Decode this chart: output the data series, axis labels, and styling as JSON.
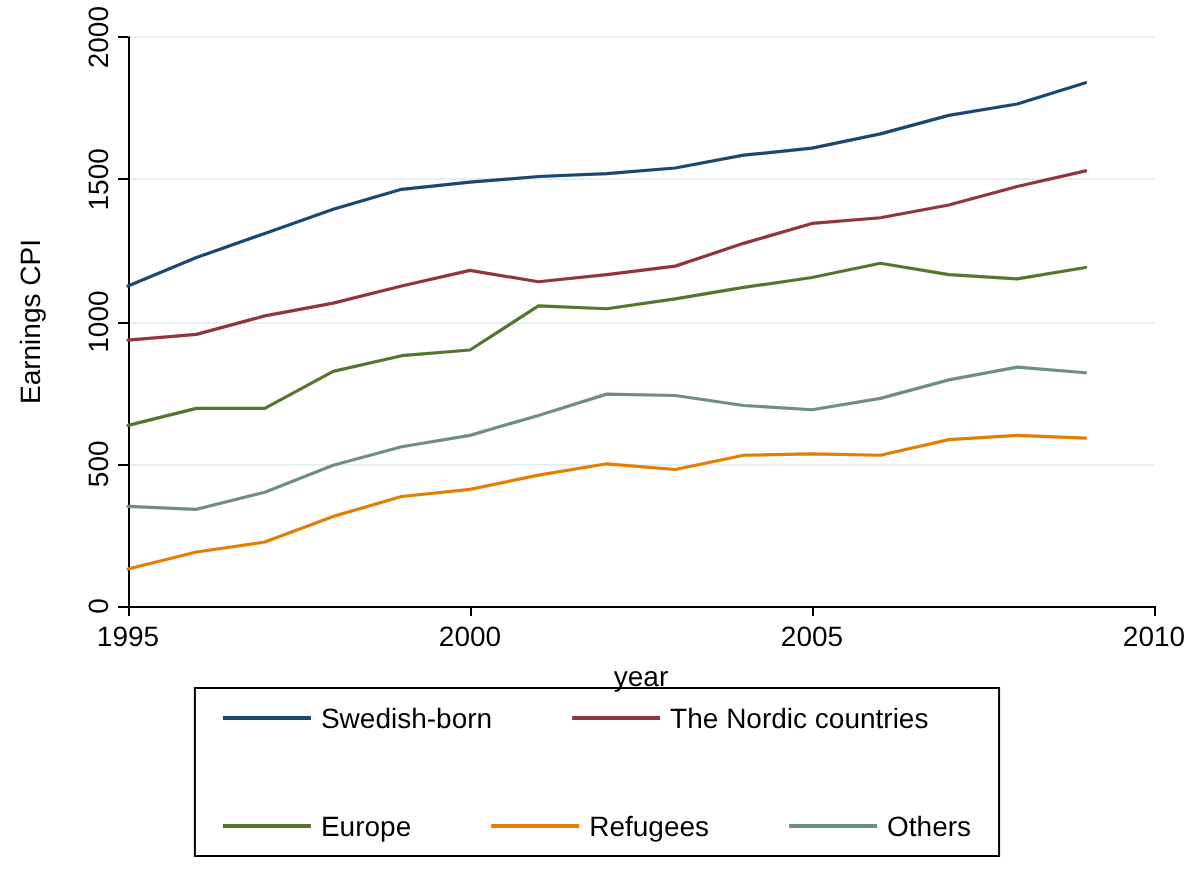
{
  "chart_data": {
    "type": "line",
    "xlabel": "year",
    "ylabel": "Earnings CPI",
    "x": [
      1995,
      1996,
      1997,
      1998,
      1999,
      2000,
      2001,
      2002,
      2003,
      2004,
      2005,
      2006,
      2007,
      2008,
      2009
    ],
    "xlim": [
      1995,
      2010
    ],
    "xticks": [
      1995,
      2000,
      2005,
      2010
    ],
    "ylim": [
      0,
      2000
    ],
    "yticks": [
      0,
      500,
      1000,
      1500,
      2000
    ],
    "grid": "y",
    "legend": "bottom",
    "marker": "none",
    "line_style": "solid",
    "series": [
      {
        "name": "Swedish-born",
        "color": "#1a476f",
        "values": [
          1125,
          1225,
          1310,
          1395,
          1465,
          1490,
          1510,
          1520,
          1540,
          1585,
          1610,
          1660,
          1725,
          1765,
          1840
        ]
      },
      {
        "name": "The Nordic countries",
        "color": "#90353b",
        "values": [
          935,
          955,
          1020,
          1065,
          1125,
          1180,
          1140,
          1165,
          1195,
          1275,
          1345,
          1365,
          1410,
          1475,
          1530
        ]
      },
      {
        "name": "Europe",
        "color": "#55752f",
        "values": [
          635,
          695,
          695,
          825,
          880,
          900,
          1055,
          1045,
          1080,
          1120,
          1155,
          1205,
          1165,
          1150,
          1190
        ]
      },
      {
        "name": "Refugees",
        "color": "#e37e00",
        "values": [
          130,
          190,
          225,
          315,
          385,
          410,
          460,
          500,
          480,
          530,
          535,
          530,
          585,
          600,
          590
        ]
      },
      {
        "name": "Others",
        "color": "#6e8e84",
        "values": [
          350,
          340,
          400,
          495,
          560,
          600,
          670,
          745,
          740,
          705,
          690,
          730,
          795,
          840,
          820
        ]
      }
    ]
  }
}
